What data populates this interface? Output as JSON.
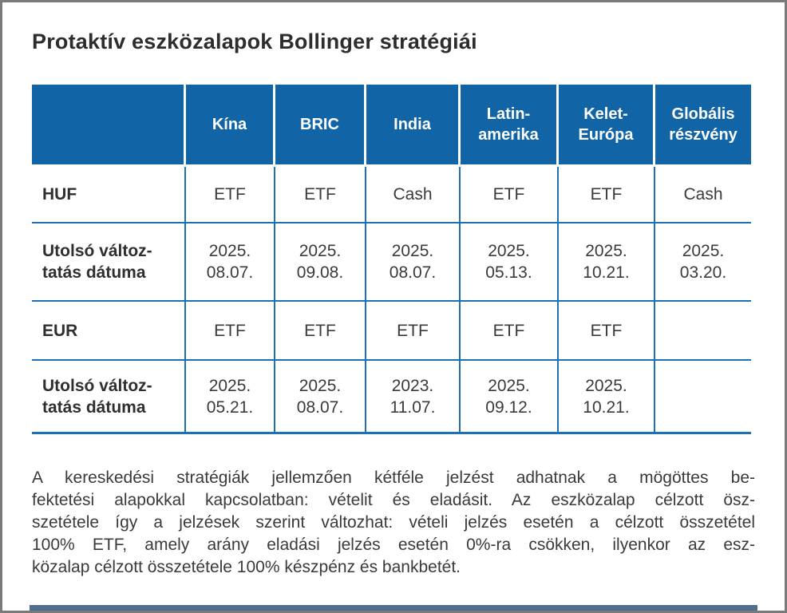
{
  "title": "Protaktív eszközalapok Bollinger stratégiái",
  "colors": {
    "header-bg": "#1165a7",
    "grid": "#1c70b6",
    "title-text": "#2d2d2d",
    "body-text": "#3a3a3a",
    "header-text": "#ffffff",
    "window-border": "#7a7a7a",
    "footer-bar": "#4f6e8d"
  },
  "table": {
    "columns": [
      "Kína",
      "BRIC",
      "India",
      "Latin-\namerika",
      "Kelet-\nEurópa",
      "Globális\nrészvény"
    ],
    "rows": [
      {
        "label": "HUF",
        "cells": [
          "ETF",
          "ETF",
          "Cash",
          "ETF",
          "ETF",
          "Cash"
        ]
      },
      {
        "label": "Utolsó változ-\ntatás dátuma",
        "cells": [
          "2025.\n08.07.",
          "2025.\n09.08.",
          "2025.\n08.07.",
          "2025.\n05.13.",
          "2025.\n10.21.",
          "2025.\n03.20."
        ]
      },
      {
        "label": "EUR",
        "cells": [
          "ETF",
          "ETF",
          "ETF",
          "ETF",
          "ETF",
          ""
        ]
      },
      {
        "label": "Utolsó változ-\ntatás dátuma",
        "cells": [
          "2025.\n05.21.",
          "2025.\n08.07.",
          "2023.\n11.07.",
          "2025.\n09.12.",
          "2025.\n10.21.",
          ""
        ]
      }
    ]
  },
  "paragraph": {
    "lines": [
      "A kereskedési stratégiák jellemzően kétféle jelzést adhatnak a mögöttes be-",
      "fektetési alapokkal kapcsolatban: vételit és eladásit. Az eszközalap célzott ösz-",
      "szetétele így a jelzések szerint változhat: vételi jelzés esetén a célzott összetétel",
      "100% ETF, amely arány eladási jelzés esetén 0%-ra csökken, ilyenkor az esz-",
      "közalap célzott összetétele 100% készpénz és bankbetét."
    ]
  }
}
